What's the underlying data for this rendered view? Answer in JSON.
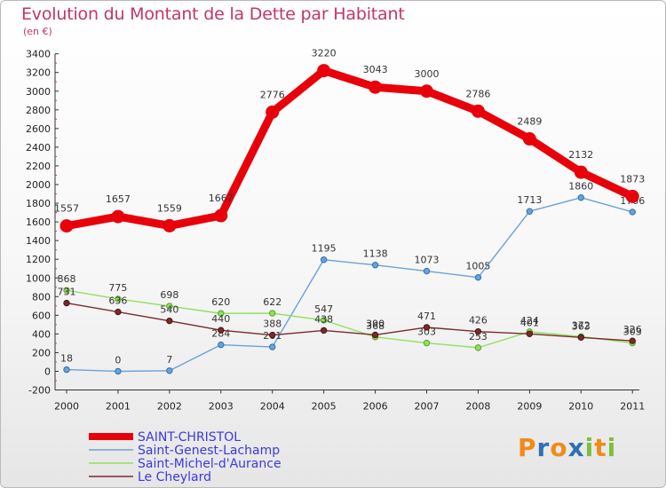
{
  "title": "Evolution du Montant de la Dette par Habitant",
  "subtitle": "(en €)",
  "logo": {
    "text": "Proxiti",
    "letters": [
      "P",
      "r",
      "o",
      "x",
      "i",
      "t",
      "i"
    ],
    "colors": [
      "#f08a1c",
      "#2f6fb5",
      "#f08a1c",
      "#2f6fb5",
      "#7cbf3a",
      "#f08a1c",
      "#7cbf3a"
    ]
  },
  "chart_data": {
    "type": "line",
    "title": "Evolution du Montant de la Dette par Habitant",
    "subtitle": "(en €)",
    "x": [
      "2000",
      "2001",
      "2002",
      "2003",
      "2004",
      "2005",
      "2006",
      "2007",
      "2008",
      "2009",
      "2010",
      "2011"
    ],
    "ylim": [
      -200,
      3400
    ],
    "yticks": [
      -200,
      0,
      200,
      400,
      600,
      800,
      1000,
      1200,
      1400,
      1600,
      1800,
      2000,
      2200,
      2400,
      2600,
      2800,
      3000,
      3200,
      3400
    ],
    "grid": false,
    "legend": "bottom-left",
    "series": [
      {
        "name": "SAINT-CHRISTOL",
        "color": "#e8000b",
        "values": [
          1557,
          1657,
          1559,
          1667,
          2776,
          3220,
          3043,
          3000,
          2786,
          2489,
          2132,
          1873
        ]
      },
      {
        "name": "Saint-Genest-Lachamp",
        "color": "#6aa2d8",
        "values": [
          18,
          0,
          7,
          284,
          261,
          1195,
          1138,
          1073,
          1005,
          1713,
          1860,
          1706
        ]
      },
      {
        "name": "Saint-Michel-d'Aurance",
        "color": "#90e060",
        "values": [
          868,
          775,
          698,
          620,
          622,
          547,
          368,
          303,
          253,
          424,
          372,
          303
        ]
      },
      {
        "name": "Le Cheylard",
        "color": "#7a2a2a",
        "values": [
          731,
          636,
          540,
          440,
          388,
          438,
          390,
          471,
          426,
          401,
          363,
          326
        ]
      }
    ]
  }
}
